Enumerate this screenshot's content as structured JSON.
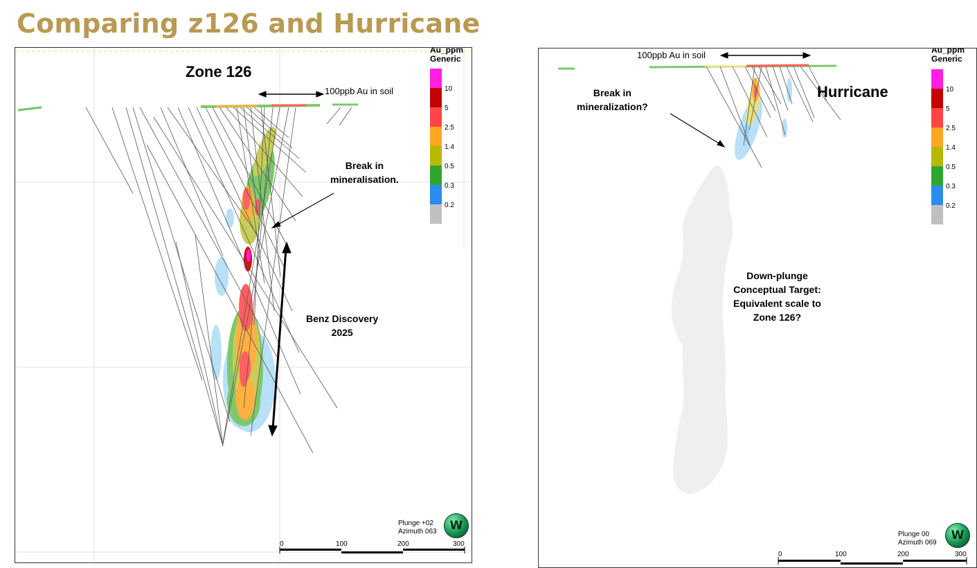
{
  "title": "Comparing z126 and Hurricane",
  "left": {
    "zone_label": "Zone 126",
    "soil_label": "100ppb Au in soil",
    "break_label_line1": "Break in",
    "break_label_line2": "mineralisation.",
    "discovery_line1": "Benz Discovery",
    "discovery_line2": "2025",
    "plunge": "Plunge +02",
    "azimuth": "Azimuth 063",
    "scale_ticks": [
      "0",
      "100",
      "200",
      "300"
    ]
  },
  "right": {
    "zone_label": "Hurricane",
    "soil_label": "100ppb Au in soil",
    "break_label_line1": "Break in",
    "break_label_line2": "mineralization?",
    "target_line1": "Down-plunge",
    "target_line2": "Conceptual Target:",
    "target_line3": "Equivalent scale to",
    "target_line4": "Zone 126?",
    "plunge": "Plunge 00",
    "azimuth": "Azimuth 069",
    "scale_ticks": [
      "0",
      "100",
      "200",
      "300"
    ]
  },
  "legend": {
    "title_line1": "Au_ppm",
    "title_line2": "Generic",
    "items": [
      {
        "value": "10",
        "color": "#ff1fe0"
      },
      {
        "value": "5",
        "color": "#c40000"
      },
      {
        "value": "2.5",
        "color": "#ff4545"
      },
      {
        "value": "1.4",
        "color": "#ffa620"
      },
      {
        "value": "0.5",
        "color": "#b8b800"
      },
      {
        "value": "0.3",
        "color": "#2ea62e"
      },
      {
        "value": "0.2",
        "color": "#2a8cf0"
      },
      {
        "value": "",
        "color": "#c0c0c0"
      }
    ]
  },
  "logo_letter": "W"
}
